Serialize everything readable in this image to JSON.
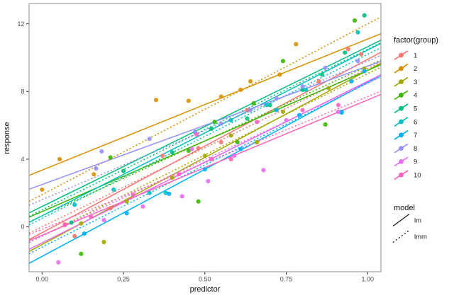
{
  "figure": {
    "xlabel": "predictor",
    "ylabel": "response"
  },
  "legend": {
    "group_title": "factor(group)",
    "model_title": "model",
    "models": [
      {
        "label": "lm",
        "style": "solid"
      },
      {
        "label": "lmm",
        "style": "dotted"
      }
    ],
    "key_color": "#1a1a1a"
  },
  "chart_data": {
    "type": "scatter",
    "title": "",
    "xlabel": "predictor",
    "ylabel": "response",
    "xlim": [
      -0.04,
      1.041
    ],
    "ylim": [
      -2.66,
      13.2
    ],
    "grid": false,
    "legend_position": "right",
    "x_ticks": {
      "values": [
        0,
        0.25,
        0.5,
        0.75,
        1.0
      ],
      "labels": [
        "0.00",
        "0.25",
        "0.50",
        "0.75",
        "1.00"
      ]
    },
    "y_ticks": {
      "values": [
        0,
        4,
        8,
        12
      ],
      "labels": [
        "0",
        "4",
        "8",
        "12"
      ]
    },
    "panel_border_color": "#8c8c8c",
    "series": [
      {
        "name": "1",
        "color": "#F8766D",
        "points": [
          [
            0.07,
            0.15
          ],
          [
            0.1,
            -0.55
          ],
          [
            0.21,
            1.1
          ],
          [
            0.37,
            4.2
          ],
          [
            0.48,
            4.65
          ],
          [
            0.55,
            5.0
          ],
          [
            0.63,
            6.9
          ],
          [
            0.85,
            8.6
          ],
          [
            0.94,
            10.5
          ],
          [
            0.98,
            10.2
          ]
        ],
        "lm": {
          "intercept": -0.35,
          "slope": 10.25
        },
        "lmm": {
          "intercept": 0.0,
          "slope": 9.35
        }
      },
      {
        "name": "2",
        "color": "#D89000",
        "points": [
          [
            0.0,
            2.2
          ],
          [
            0.054,
            4.0
          ],
          [
            0.159,
            3.1
          ],
          [
            0.35,
            7.5
          ],
          [
            0.45,
            7.45
          ],
          [
            0.55,
            7.7
          ],
          [
            0.61,
            8.1
          ],
          [
            0.64,
            8.6
          ],
          [
            0.73,
            9.0
          ],
          [
            0.78,
            10.8
          ]
        ],
        "lm": {
          "intercept": 3.35,
          "slope": 7.75
        },
        "lmm": {
          "intercept": 1.9,
          "slope": 10.1
        }
      },
      {
        "name": "3",
        "color": "#A3A500",
        "points": [
          [
            0.12,
            0.2
          ],
          [
            0.19,
            -0.9
          ],
          [
            0.26,
            1.5
          ],
          [
            0.4,
            2.9
          ],
          [
            0.5,
            4.2
          ],
          [
            0.58,
            5.4
          ],
          [
            0.66,
            5.0
          ],
          [
            0.74,
            6.8
          ],
          [
            0.88,
            8.2
          ],
          [
            0.99,
            9.35
          ]
        ],
        "lm": {
          "intercept": -1.05,
          "slope": 10.3
        },
        "lmm": {
          "intercept": -0.55,
          "slope": 9.6
        }
      },
      {
        "name": "4",
        "color": "#39B600",
        "points": [
          [
            0.12,
            -1.6
          ],
          [
            0.21,
            4.1
          ],
          [
            0.45,
            4.5
          ],
          [
            0.48,
            1.5
          ],
          [
            0.53,
            6.2
          ],
          [
            0.6,
            5.0
          ],
          [
            0.65,
            7.3
          ],
          [
            0.74,
            9.8
          ],
          [
            0.87,
            6.05
          ],
          [
            0.96,
            12.2
          ]
        ],
        "lm": {
          "intercept": 0.9,
          "slope": 8.35
        },
        "lmm": {
          "intercept": 0.65,
          "slope": 8.85
        }
      },
      {
        "name": "5",
        "color": "#00BF7D",
        "points": [
          [
            0.09,
            0.25
          ],
          [
            0.25,
            3.3
          ],
          [
            0.4,
            4.4
          ],
          [
            0.52,
            5.8
          ],
          [
            0.63,
            6.4
          ],
          [
            0.7,
            7.2
          ],
          [
            0.8,
            8.1
          ],
          [
            0.86,
            9.0
          ],
          [
            0.93,
            10.3
          ],
          [
            0.99,
            12.5
          ]
        ],
        "lm": {
          "intercept": 1.2,
          "slope": 9.45
        },
        "lmm": {
          "intercept": 1.0,
          "slope": 9.5
        }
      },
      {
        "name": "6",
        "color": "#00BFC4",
        "points": [
          [
            0.1,
            1.3
          ],
          [
            0.22,
            2.2
          ],
          [
            0.33,
            2.0
          ],
          [
            0.38,
            2.0
          ],
          [
            0.47,
            5.6
          ],
          [
            0.58,
            6.3
          ],
          [
            0.69,
            7.2
          ],
          [
            0.81,
            8.1
          ],
          [
            0.92,
            6.8
          ],
          [
            0.97,
            11.5
          ]
        ],
        "lm": {
          "intercept": 0.65,
          "slope": 9.8
        },
        "lmm": {
          "intercept": 0.5,
          "slope": 9.7
        }
      },
      {
        "name": "7",
        "color": "#00B0F6",
        "points": [
          [
            0.13,
            -0.4
          ],
          [
            0.26,
            0.8
          ],
          [
            0.39,
            1.95
          ],
          [
            0.5,
            3.4
          ],
          [
            0.61,
            4.6
          ],
          [
            0.72,
            6.9
          ],
          [
            0.79,
            6.6
          ],
          [
            0.92,
            6.75
          ],
          [
            0.95,
            8.6
          ],
          [
            0.99,
            9.2
          ]
        ],
        "lm": {
          "intercept": -1.75,
          "slope": 10.3
        },
        "lmm": {
          "intercept": -1.2,
          "slope": 9.7
        }
      },
      {
        "name": "8",
        "color": "#9590FF",
        "points": [
          [
            0.166,
            3.45
          ],
          [
            0.183,
            4.46
          ],
          [
            0.33,
            5.2
          ],
          [
            0.47,
            5.6
          ],
          [
            0.55,
            6.1
          ],
          [
            0.64,
            6.9
          ],
          [
            0.72,
            7.6
          ],
          [
            0.8,
            8.3
          ],
          [
            0.87,
            9.4
          ],
          [
            0.97,
            9.8
          ]
        ],
        "lm": {
          "intercept": 2.5,
          "slope": 7.0
        },
        "lmm": {
          "intercept": 1.6,
          "slope": 8.2
        }
      },
      {
        "name": "9",
        "color": "#E76BF3",
        "points": [
          [
            0.05,
            -2.1
          ],
          [
            0.19,
            0.4
          ],
          [
            0.31,
            1.2
          ],
          [
            0.43,
            1.8
          ],
          [
            0.46,
            4.6
          ],
          [
            0.51,
            2.7
          ],
          [
            0.59,
            4.2
          ],
          [
            0.68,
            3.35
          ],
          [
            0.75,
            6.3
          ],
          [
            0.91,
            6.8
          ]
        ],
        "lm": {
          "intercept": -0.95,
          "slope": 9.55
        },
        "lmm": {
          "intercept": -0.55,
          "slope": 9.05
        }
      },
      {
        "name": "10",
        "color": "#FF62BC",
        "points": [
          [
            0.07,
            0.1
          ],
          [
            0.15,
            0.6
          ],
          [
            0.28,
            1.9
          ],
          [
            0.42,
            3.1
          ],
          [
            0.475,
            5.45
          ],
          [
            0.52,
            4.0
          ],
          [
            0.58,
            4.0
          ],
          [
            0.66,
            6.2
          ],
          [
            0.8,
            6.9
          ],
          [
            0.91,
            7.2
          ]
        ],
        "lm": {
          "intercept": -0.5,
          "slope": 8.0
        },
        "lmm": {
          "intercept": -0.15,
          "slope": 7.85
        }
      }
    ]
  }
}
